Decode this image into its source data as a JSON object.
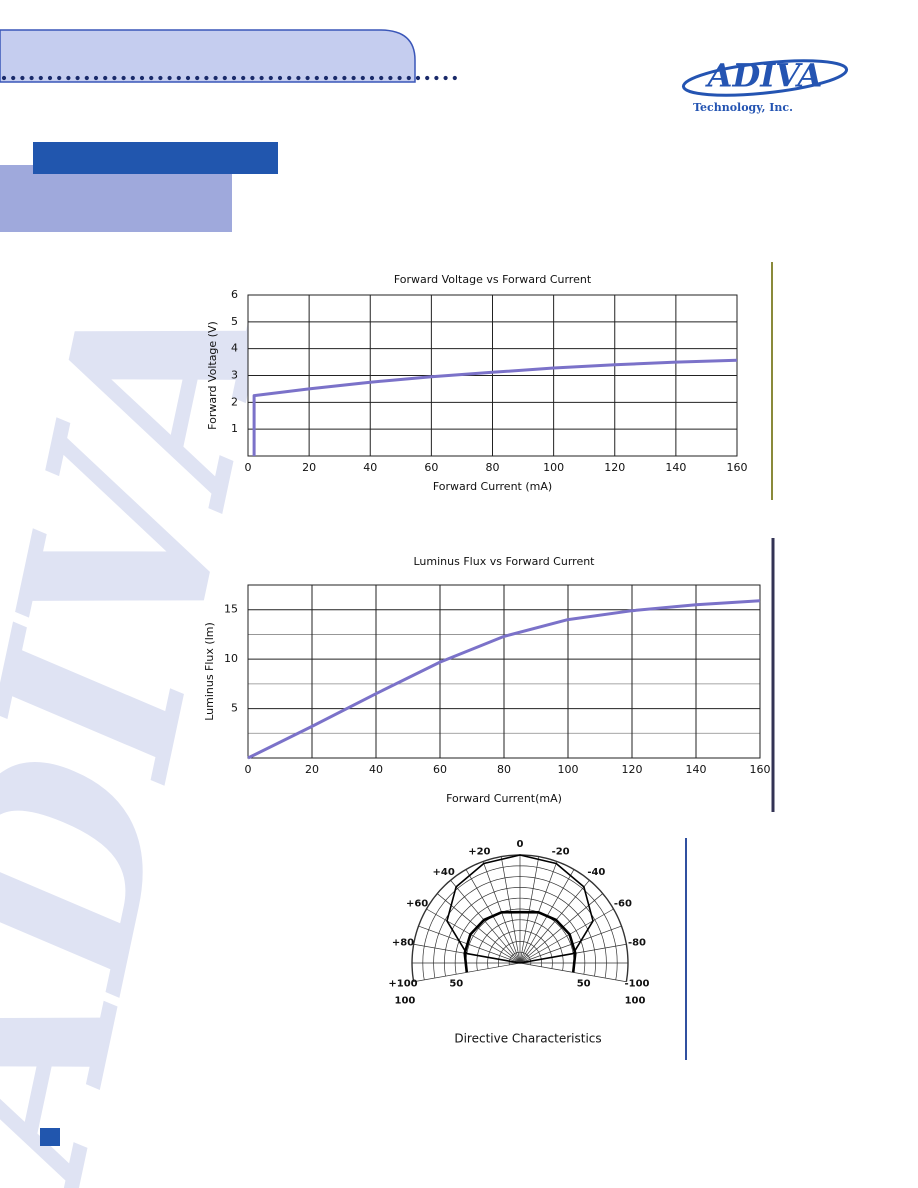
{
  "header": {
    "logo": "ADIVA",
    "tagline": "Technology, Inc."
  },
  "watermark": "ADIVA",
  "chart_data": [
    {
      "type": "line",
      "title": "Forward Voltage vs  Forward Current",
      "xlabel": "Forward Current (mA)",
      "ylabel": "Forward Voltage (V)",
      "x": [
        2,
        2,
        20,
        40,
        60,
        80,
        100,
        120,
        140,
        160
      ],
      "series": [
        {
          "color": "#7b72c9",
          "values": [
            0,
            2.25,
            2.5,
            2.75,
            2.95,
            3.12,
            3.28,
            3.4,
            3.5,
            3.57
          ]
        }
      ],
      "xlim": [
        0,
        160
      ],
      "xticks": [
        0,
        20,
        40,
        60,
        80,
        100,
        120,
        140,
        160
      ],
      "ylim": [
        0,
        6
      ],
      "yticks": [
        1,
        2,
        3,
        4,
        5,
        6
      ],
      "grid": true
    },
    {
      "type": "line",
      "title": "Luminus Flux vs Forward Current",
      "xlabel": "Forward Current(mA)",
      "ylabel": "Luminus Flux (lm)",
      "x": [
        0,
        20,
        40,
        60,
        80,
        100,
        120,
        140,
        160
      ],
      "series": [
        {
          "color": "#7b72c9",
          "values": [
            0,
            3.2,
            6.5,
            9.7,
            12.3,
            14.0,
            14.9,
            15.5,
            15.9
          ]
        }
      ],
      "xlim": [
        0,
        160
      ],
      "xticks": [
        0,
        20,
        40,
        60,
        80,
        100,
        120,
        140,
        160
      ],
      "ylim": [
        0,
        17.5
      ],
      "yticks": [
        5,
        10,
        15
      ],
      "ygrid_minor": [
        2.5,
        7.5,
        12.5
      ],
      "grid": true
    },
    {
      "type": "polar",
      "title": "Directive Characteristics",
      "alim": [
        -100,
        100
      ],
      "aticks": [
        {
          "value": 100,
          "label": "+100"
        },
        {
          "value": 80,
          "label": "+80"
        },
        {
          "value": 60,
          "label": "+60"
        },
        {
          "value": 40,
          "label": "+40"
        },
        {
          "value": 20,
          "label": "+20"
        },
        0,
        -20,
        -40,
        -60,
        -80,
        -100
      ],
      "rlim": [
        0,
        100
      ],
      "rticks": [
        50,
        100
      ],
      "series": [
        {
          "color": "#000000",
          "angles": [
            -100,
            -80,
            -60,
            -40,
            -20,
            0,
            20,
            40,
            60,
            80,
            100
          ],
          "values": [
            0,
            50,
            78,
            92,
            98,
            100,
            98,
            92,
            78,
            50,
            0
          ]
        },
        {
          "color": "#000000",
          "angles": [
            -100,
            -80,
            -60,
            -40,
            -20,
            0,
            20,
            40,
            60,
            80,
            100
          ],
          "values": [
            50,
            52,
            53,
            52,
            50,
            47,
            50,
            52,
            53,
            52,
            50
          ]
        }
      ]
    }
  ]
}
